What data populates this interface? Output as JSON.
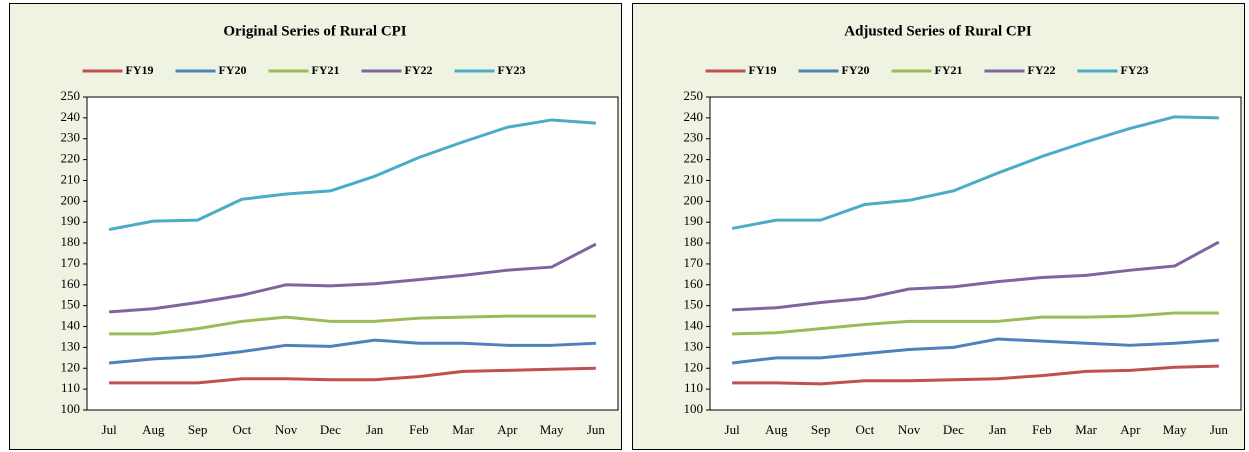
{
  "chart_data": [
    {
      "type": "line",
      "title": "Original Series of  Rural CPI",
      "categories": [
        "Jul",
        "Aug",
        "Sep",
        "Oct",
        "Nov",
        "Dec",
        "Jan",
        "Feb",
        "Mar",
        "Apr",
        "May",
        "Jun"
      ],
      "ylim": [
        100,
        250
      ],
      "yticks": [
        100,
        110,
        120,
        130,
        140,
        150,
        160,
        170,
        180,
        190,
        200,
        210,
        220,
        230,
        240,
        250
      ],
      "series": [
        {
          "name": "FY19",
          "color": "#c0504d",
          "values": [
            113,
            113,
            113,
            115,
            115,
            114.5,
            114.5,
            116,
            118.5,
            119,
            119.5,
            120
          ]
        },
        {
          "name": "FY20",
          "color": "#4f81bd",
          "values": [
            122.5,
            124.5,
            125.5,
            128,
            131,
            130.5,
            133.5,
            132,
            132,
            131,
            131,
            132
          ]
        },
        {
          "name": "FY21",
          "color": "#9bbb59",
          "values": [
            136.5,
            136.5,
            139,
            142.5,
            144.5,
            142.5,
            142.5,
            144,
            144.5,
            145,
            145,
            145
          ]
        },
        {
          "name": "FY22",
          "color": "#8064a2",
          "values": [
            147,
            148.5,
            151.5,
            155,
            160,
            159.5,
            160.5,
            162.5,
            164.5,
            167,
            168.5,
            179.5
          ]
        },
        {
          "name": "FY23",
          "color": "#4bacc6",
          "values": [
            186.5,
            190.5,
            191,
            201,
            203.5,
            205,
            212,
            221,
            228.5,
            235.5,
            239,
            237.5
          ]
        }
      ]
    },
    {
      "type": "line",
      "title": "Adjusted Series of  Rural CPI",
      "categories": [
        "Jul",
        "Aug",
        "Sep",
        "Oct",
        "Nov",
        "Dec",
        "Jan",
        "Feb",
        "Mar",
        "Apr",
        "May",
        "Jun"
      ],
      "ylim": [
        100,
        250
      ],
      "yticks": [
        100,
        110,
        120,
        130,
        140,
        150,
        160,
        170,
        180,
        190,
        200,
        210,
        220,
        230,
        240,
        250
      ],
      "series": [
        {
          "name": "FY19",
          "color": "#c0504d",
          "values": [
            113,
            113,
            112.5,
            114,
            114,
            114.5,
            115,
            116.5,
            118.5,
            119,
            120.5,
            121
          ]
        },
        {
          "name": "FY20",
          "color": "#4f81bd",
          "values": [
            122.5,
            125,
            125,
            127,
            129,
            130,
            134,
            133,
            132,
            131,
            132,
            133.5
          ]
        },
        {
          "name": "FY21",
          "color": "#9bbb59",
          "values": [
            136.5,
            137,
            139,
            141,
            142.5,
            142.5,
            142.5,
            144.5,
            144.5,
            145,
            146.5,
            146.5
          ]
        },
        {
          "name": "FY22",
          "color": "#8064a2",
          "values": [
            148,
            149,
            151.5,
            153.5,
            158,
            159,
            161.5,
            163.5,
            164.5,
            167,
            169,
            180.5
          ]
        },
        {
          "name": "FY23",
          "color": "#4bacc6",
          "values": [
            187,
            191,
            191,
            198.5,
            200.5,
            205,
            213.5,
            221.5,
            228.5,
            235,
            240.5,
            240
          ]
        }
      ]
    }
  ]
}
